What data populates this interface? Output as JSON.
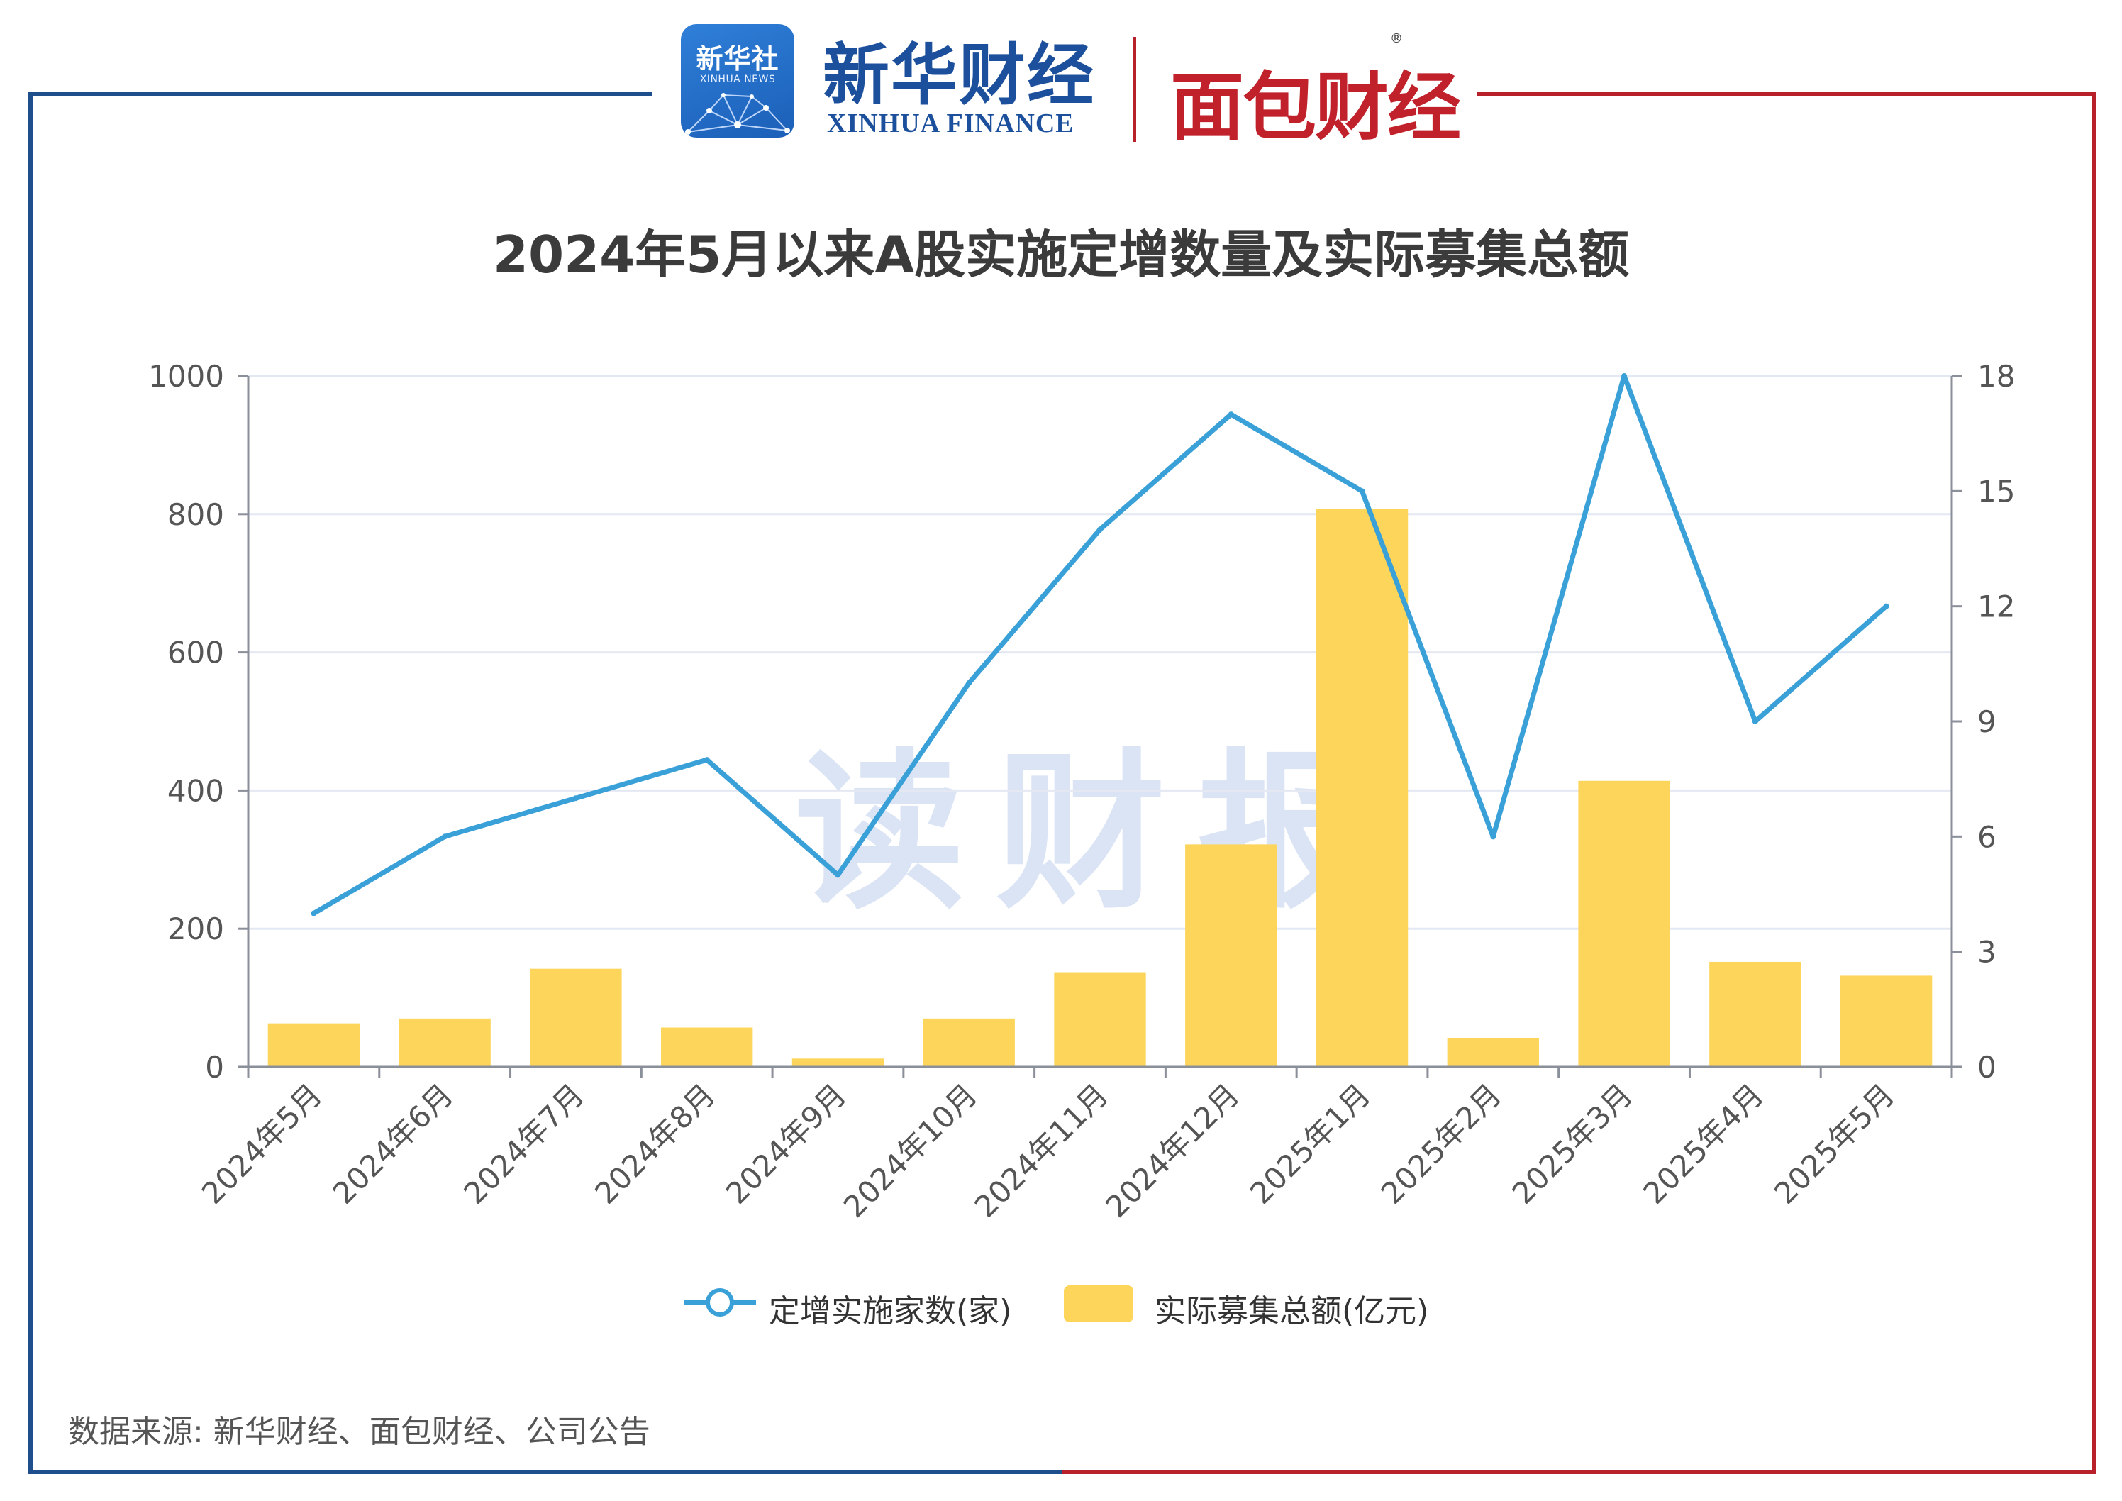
{
  "header": {
    "xinhua_badge_title": "新华社",
    "xinhua_badge_sub": "XINHUA NEWS",
    "xinhua_finance_cn": "新华财经",
    "xinhua_finance_en": "XINHUA FINANCE",
    "mianbao_finance": "面包财经",
    "registered_mark": "®"
  },
  "watermark": "读财报",
  "legend": {
    "line_label": "定增实施家数(家)",
    "bar_label": "实际募集总额(亿元)"
  },
  "source_note": "数据来源: 新华财经、面包财经、公司公告",
  "colors": {
    "line": "#3aa0d8",
    "bar": "#fdd55b",
    "frame_left": "#1f4e8c",
    "frame_right": "#b8202a",
    "grid": "#e4e8f2"
  },
  "chart_data": {
    "type": "bar",
    "title": "2024年5月以来A股实施定增数量及实际募集总额",
    "categories": [
      "2024年5月",
      "2024年6月",
      "2024年7月",
      "2024年8月",
      "2024年9月",
      "2024年10月",
      "2024年11月",
      "2024年12月",
      "2025年1月",
      "2025年2月",
      "2025年3月",
      "2025年4月",
      "2025年5月"
    ],
    "series": [
      {
        "name": "实际募集总额(亿元)",
        "type": "bar",
        "axis": "left",
        "values": [
          63,
          70,
          142,
          57,
          12,
          70,
          137,
          322,
          808,
          42,
          414,
          152,
          132
        ]
      },
      {
        "name": "定增实施家数(家)",
        "type": "line",
        "axis": "right",
        "values": [
          4,
          6,
          7,
          8,
          5,
          10,
          14,
          17,
          15,
          6,
          18,
          9,
          12
        ]
      }
    ],
    "y_left": {
      "ticks": [
        0,
        200,
        400,
        600,
        800,
        1000
      ],
      "range": [
        0,
        1000
      ]
    },
    "y_right": {
      "ticks": [
        0,
        3,
        6,
        9,
        12,
        15,
        18
      ],
      "range": [
        0,
        18
      ]
    },
    "grid": true,
    "legend_position": "bottom-center"
  }
}
